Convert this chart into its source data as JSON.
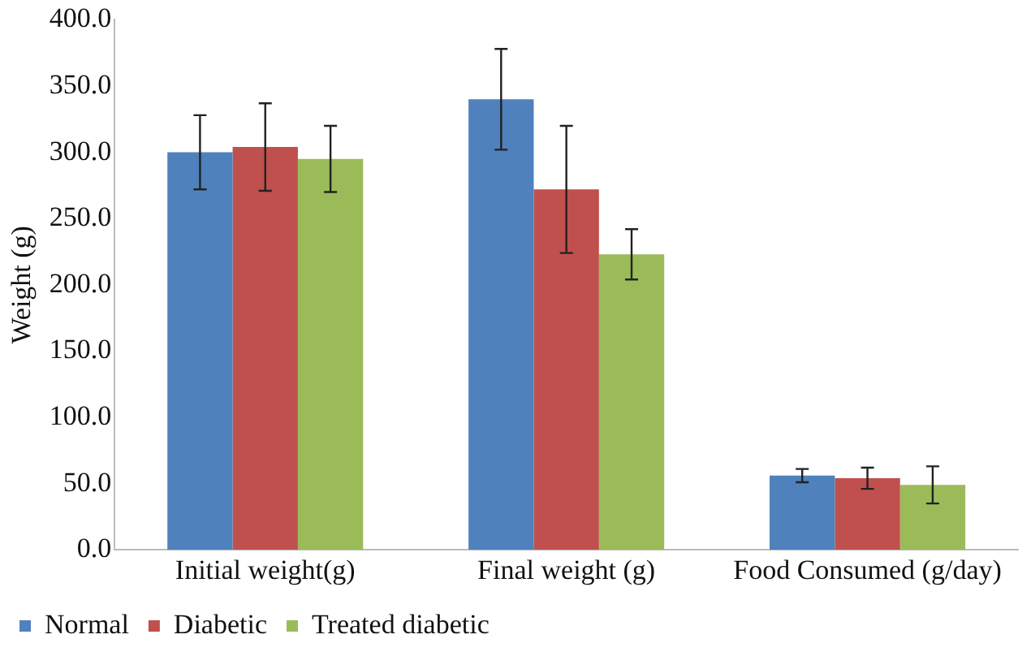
{
  "chart_data": {
    "type": "bar",
    "ylabel": "Weight (g)",
    "categories": [
      "Initial weight(g)",
      "Final weight (g)",
      "Food Consumed (g/day)"
    ],
    "series": [
      {
        "name": "Normal",
        "color": "#4f81bd",
        "values": [
          300,
          340,
          56
        ],
        "errors": [
          28,
          38,
          5
        ]
      },
      {
        "name": "Diabetic",
        "color": "#c0504d",
        "values": [
          304,
          272,
          54
        ],
        "errors": [
          33,
          48,
          8
        ]
      },
      {
        "name": "Treated diabetic",
        "color": "#9bbb59",
        "values": [
          295,
          223,
          49
        ],
        "errors": [
          25,
          19,
          14
        ]
      }
    ],
    "ylim": [
      0,
      400
    ],
    "yticks": [
      {
        "value": 0,
        "label": "0.0"
      },
      {
        "value": 50,
        "label": "50.0"
      },
      {
        "value": 100,
        "label": "100.0"
      },
      {
        "value": 150,
        "label": "150.0"
      },
      {
        "value": 200,
        "label": "200.0"
      },
      {
        "value": 250,
        "label": "250.0"
      },
      {
        "value": 300,
        "label": "300.0"
      },
      {
        "value": 350,
        "label": "350.0"
      },
      {
        "value": 400,
        "label": "400.0"
      }
    ],
    "grid": false,
    "legend": "bottom"
  }
}
